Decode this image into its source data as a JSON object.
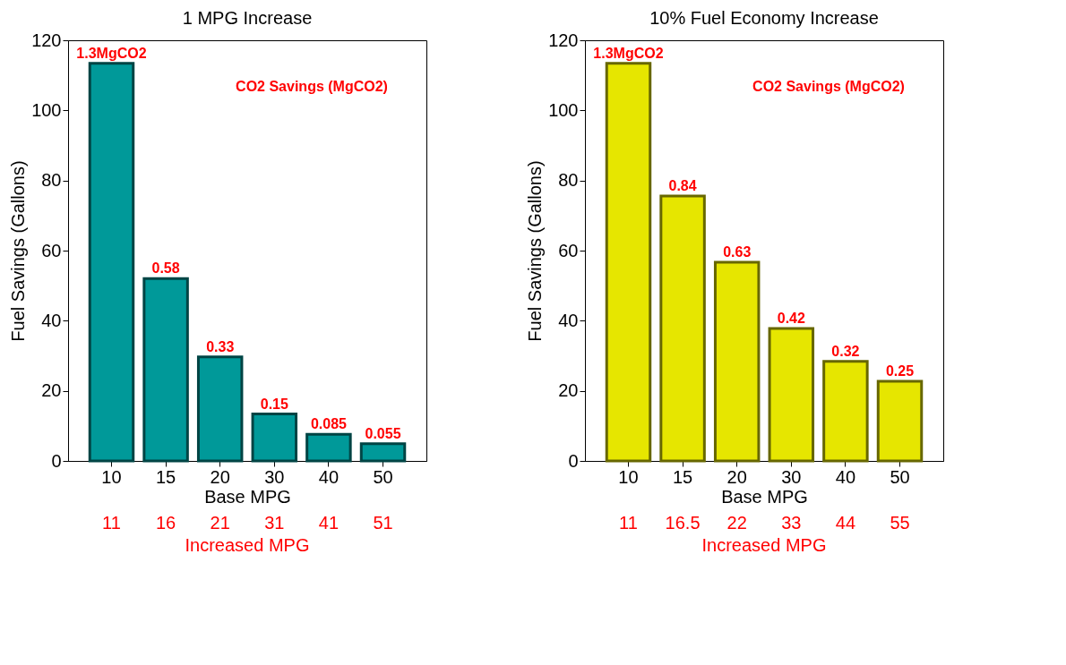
{
  "chart_data": [
    {
      "type": "bar",
      "title": "1 MPG Increase",
      "xlabel": "Base MPG",
      "ylabel": "Fuel Savings (Gallons)",
      "categories": [
        "10",
        "15",
        "20",
        "30",
        "40",
        "50"
      ],
      "series": [
        {
          "color": "#009999",
          "values": [
            113.4,
            52,
            29.7,
            13.4,
            7.6,
            4.9
          ]
        }
      ],
      "ylim": [
        0,
        120
      ],
      "yticks": [
        0,
        20,
        40,
        60,
        80,
        100,
        120
      ],
      "grid": false,
      "annotations": [
        "CO2 Savings (MgCO2)",
        "11",
        "16",
        "21",
        "31",
        "41",
        "51",
        "Increased MPG",
        {
          "text": "1.3MgCO2",
          "x": "10",
          "y": 113.4
        },
        {
          "text": "0.58",
          "x": "15",
          "y": 52
        },
        {
          "text": "0.33",
          "x": "20",
          "y": 29.7
        },
        {
          "text": "0.15",
          "x": "30",
          "y": 13.4
        },
        {
          "text": "0.085",
          "x": "40",
          "y": 7.6
        },
        {
          "text": "0.055",
          "x": "50",
          "y": 4.9
        }
      ]
    },
    {
      "type": "bar",
      "title": "10% Fuel Economy Increase",
      "xlabel": "Base MPG",
      "ylabel": "Fuel Savings (Gallons)",
      "categories": [
        "10",
        "15",
        "20",
        "30",
        "40",
        "50"
      ],
      "series": [
        {
          "color": "#e6e600",
          "values": [
            113.4,
            75.6,
            56.7,
            37.8,
            28.4,
            22.7
          ]
        }
      ],
      "ylim": [
        0,
        120
      ],
      "yticks": [
        0,
        20,
        40,
        60,
        80,
        100,
        120
      ],
      "grid": false,
      "annotations": [
        "CO2 Savings (MgCO2)",
        "11",
        "16.5",
        "22",
        "33",
        "44",
        "55",
        "Increased MPG",
        {
          "text": "1.3MgCO2",
          "x": "10",
          "y": 113.4
        },
        {
          "text": "0.84",
          "x": "15",
          "y": 75.6
        },
        {
          "text": "0.63",
          "x": "20",
          "y": 56.7
        },
        {
          "text": "0.42",
          "x": "30",
          "y": 37.8
        },
        {
          "text": "0.32",
          "x": "40",
          "y": 28.4
        },
        {
          "text": "0.25",
          "x": "50",
          "y": 22.7
        }
      ]
    }
  ]
}
